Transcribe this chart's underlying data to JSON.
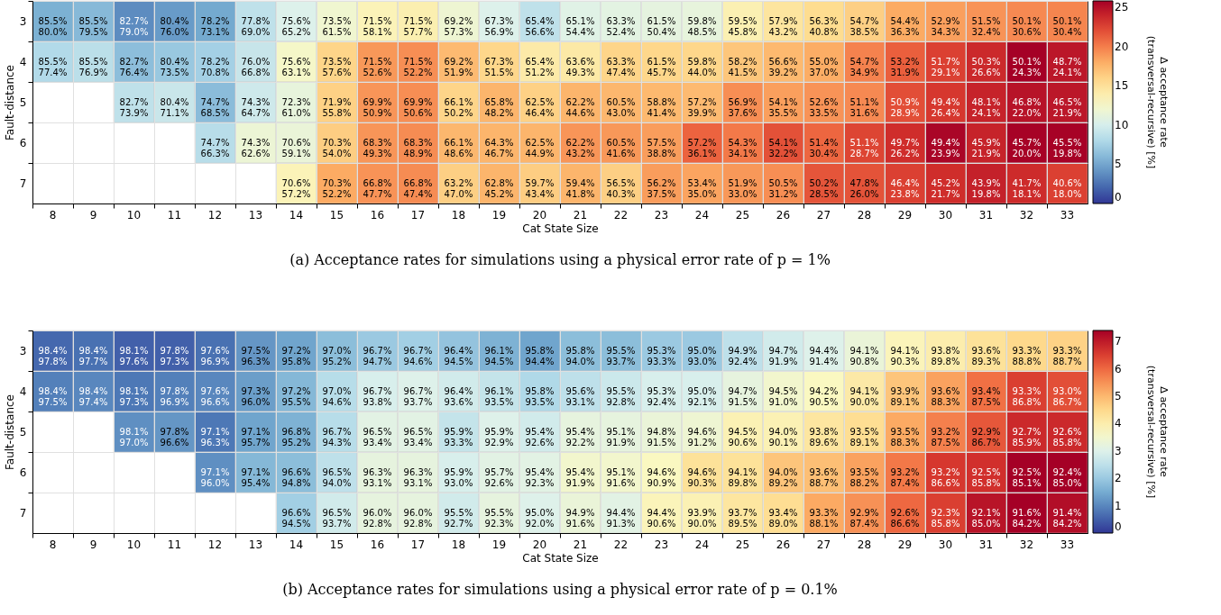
{
  "chart_data": [
    {
      "type": "heatmap",
      "title": "(a) Acceptance rates for simulations using a physical error rate of p = 1%",
      "xlabel": "Cat State Size",
      "ylabel": "Fault-distance",
      "clabel": "Δ acceptance rate\n(transversal-recursive) [%]",
      "grid": true,
      "categories": [
        "8",
        "9",
        "10",
        "11",
        "12",
        "13",
        "14",
        "15",
        "16",
        "17",
        "18",
        "19",
        "20",
        "21",
        "22",
        "23",
        "24",
        "25",
        "26",
        "27",
        "28",
        "29",
        "30",
        "31",
        "32",
        "33"
      ],
      "y_categories": [
        "3",
        "4",
        "5",
        "6",
        "7"
      ],
      "clim": [
        0,
        25.8
      ],
      "cticks": [
        0,
        5,
        10,
        15,
        20,
        25
      ],
      "cells": [
        [
          5.5,
          6.0,
          3.7,
          4.4,
          5.1,
          8.8,
          10.4,
          12.0,
          13.4,
          13.8,
          11.9,
          10.4,
          8.8,
          10.7,
          10.9,
          11.1,
          11.3,
          13.7,
          14.7,
          15.5,
          16.2,
          18.1,
          18.6,
          19.1,
          19.5,
          19.7
        ],
        [
          8.1,
          8.6,
          6.3,
          6.9,
          7.4,
          9.2,
          12.5,
          15.9,
          18.9,
          19.3,
          17.3,
          15.8,
          14.2,
          14.3,
          15.9,
          15.8,
          15.8,
          16.7,
          17.4,
          18.0,
          19.8,
          21.3,
          22.6,
          23.7,
          25.8,
          24.6
        ],
        [
          null,
          null,
          8.8,
          9.3,
          6.2,
          9.6,
          11.3,
          16.1,
          19.0,
          19.3,
          15.9,
          17.6,
          16.1,
          17.6,
          17.5,
          17.4,
          17.3,
          19.3,
          18.6,
          19.1,
          19.5,
          22.0,
          23.0,
          24.0,
          24.8,
          24.6
        ],
        [
          null,
          null,
          null,
          null,
          8.4,
          11.7,
          11.5,
          16.3,
          19.0,
          19.4,
          17.5,
          17.6,
          17.6,
          19.0,
          18.9,
          18.7,
          21.1,
          20.2,
          21.9,
          21.0,
          22.4,
          23.5,
          25.5,
          24.0,
          25.7,
          25.7
        ],
        [
          null,
          null,
          null,
          null,
          null,
          null,
          13.4,
          18.1,
          19.1,
          19.4,
          16.2,
          17.6,
          16.3,
          17.6,
          16.2,
          18.7,
          18.4,
          18.9,
          19.3,
          21.7,
          21.8,
          22.6,
          23.5,
          24.1,
          23.6,
          22.6
        ]
      ],
      "cell_labels": [
        [
          "85.5%\n80.0%",
          "85.5%\n79.5%",
          "82.7%\n79.0%",
          "80.4%\n76.0%",
          "78.2%\n73.1%",
          "77.8%\n69.0%",
          "75.6%\n65.2%",
          "73.5%\n61.5%",
          "71.5%\n58.1%",
          "71.5%\n57.7%",
          "69.2%\n57.3%",
          "67.3%\n56.9%",
          "65.4%\n56.6%",
          "65.1%\n54.4%",
          "63.3%\n52.4%",
          "61.5%\n50.4%",
          "59.8%\n48.5%",
          "59.5%\n45.8%",
          "57.9%\n43.2%",
          "56.3%\n40.8%",
          "54.7%\n38.5%",
          "54.4%\n36.3%",
          "52.9%\n34.3%",
          "51.5%\n32.4%",
          "50.1%\n30.6%",
          "50.1%\n30.4%"
        ],
        [
          "85.5%\n77.4%",
          "85.5%\n76.9%",
          "82.7%\n76.4%",
          "80.4%\n73.5%",
          "78.2%\n70.8%",
          "76.0%\n66.8%",
          "75.6%\n63.1%",
          "73.5%\n57.6%",
          "71.5%\n52.6%",
          "71.5%\n52.2%",
          "69.2%\n51.9%",
          "67.3%\n51.5%",
          "65.4%\n51.2%",
          "63.6%\n49.3%",
          "63.3%\n47.4%",
          "61.5%\n45.7%",
          "59.8%\n44.0%",
          "58.2%\n41.5%",
          "56.6%\n39.2%",
          "55.0%\n37.0%",
          "54.7%\n34.9%",
          "53.2%\n31.9%",
          "51.7%\n29.1%",
          "50.3%\n26.6%",
          "50.1%\n24.3%",
          "48.7%\n24.1%"
        ],
        [
          null,
          null,
          "82.7%\n73.9%",
          "80.4%\n71.1%",
          "74.7%\n68.5%",
          "74.3%\n64.7%",
          "72.3%\n61.0%",
          "71.9%\n55.8%",
          "69.9%\n50.9%",
          "69.9%\n50.6%",
          "66.1%\n50.2%",
          "65.8%\n48.2%",
          "62.5%\n46.4%",
          "62.2%\n44.6%",
          "60.5%\n43.0%",
          "58.8%\n41.4%",
          "57.2%\n39.9%",
          "56.9%\n37.6%",
          "54.1%\n35.5%",
          "52.6%\n33.5%",
          "51.1%\n31.6%",
          "50.9%\n28.9%",
          "49.4%\n26.4%",
          "48.1%\n24.1%",
          "46.8%\n22.0%",
          "46.5%\n21.9%"
        ],
        [
          null,
          null,
          null,
          null,
          "74.7%\n66.3%",
          "74.3%\n62.6%",
          "70.6%\n59.1%",
          "70.3%\n54.0%",
          "68.3%\n49.3%",
          "68.3%\n48.9%",
          "66.1%\n48.6%",
          "64.3%\n46.7%",
          "62.5%\n44.9%",
          "62.2%\n43.2%",
          "60.5%\n41.6%",
          "57.5%\n38.8%",
          "57.2%\n36.1%",
          "54.3%\n34.1%",
          "54.1%\n32.2%",
          "51.4%\n30.4%",
          "51.1%\n28.7%",
          "49.7%\n26.2%",
          "49.4%\n23.9%",
          "45.9%\n21.9%",
          "45.7%\n20.0%",
          "45.5%\n19.8%"
        ],
        [
          null,
          null,
          null,
          null,
          null,
          null,
          "70.6%\n57.2%",
          "70.3%\n52.2%",
          "66.8%\n47.7%",
          "66.8%\n47.4%",
          "63.2%\n47.0%",
          "62.8%\n45.2%",
          "59.7%\n43.4%",
          "59.4%\n41.8%",
          "56.5%\n40.3%",
          "56.2%\n37.5%",
          "53.4%\n35.0%",
          "51.9%\n33.0%",
          "50.5%\n31.2%",
          "50.2%\n28.5%",
          "47.8%\n26.0%",
          "46.4%\n23.8%",
          "45.2%\n21.7%",
          "43.9%\n19.8%",
          "41.7%\n18.1%",
          "40.6%\n18.0%"
        ]
      ]
    },
    {
      "type": "heatmap",
      "title": "(b) Acceptance rates for simulations using a physical error rate of p = 0.1%",
      "xlabel": "Cat State Size",
      "ylabel": "Fault-distance",
      "clabel": "Δ acceptance rate\n(transversal-recursive) [%]",
      "grid": true,
      "categories": [
        "8",
        "9",
        "10",
        "11",
        "12",
        "13",
        "14",
        "15",
        "16",
        "17",
        "18",
        "19",
        "20",
        "21",
        "22",
        "23",
        "24",
        "25",
        "26",
        "27",
        "28",
        "29",
        "30",
        "31",
        "32",
        "33"
      ],
      "y_categories": [
        "3",
        "4",
        "5",
        "6",
        "7"
      ],
      "clim": [
        0,
        7.4
      ],
      "cticks": [
        0,
        1,
        2,
        3,
        4,
        5,
        6,
        7
      ],
      "cells": [
        [
          0.6,
          0.7,
          0.5,
          0.5,
          0.7,
          1.2,
          1.4,
          1.8,
          2.0,
          2.1,
          1.9,
          1.6,
          1.4,
          1.8,
          1.8,
          2.0,
          2.0,
          2.5,
          2.8,
          3.0,
          3.3,
          3.8,
          4.0,
          4.3,
          4.5,
          4.6
        ],
        [
          0.9,
          1.0,
          0.8,
          0.9,
          1.0,
          1.3,
          1.7,
          2.4,
          2.9,
          3.0,
          2.8,
          2.6,
          2.3,
          2.5,
          2.7,
          2.9,
          2.9,
          3.2,
          3.5,
          3.7,
          4.1,
          4.8,
          5.3,
          5.9,
          6.5,
          6.3
        ],
        [
          null,
          null,
          1.1,
          1.2,
          0.8,
          1.4,
          1.6,
          2.4,
          3.1,
          3.1,
          2.6,
          3.0,
          2.8,
          3.2,
          3.2,
          3.3,
          3.4,
          3.9,
          3.9,
          4.2,
          4.4,
          5.2,
          5.7,
          6.2,
          6.8,
          6.8
        ],
        [
          null,
          null,
          null,
          null,
          1.1,
          1.7,
          1.8,
          2.5,
          3.2,
          3.2,
          2.9,
          3.1,
          3.1,
          3.5,
          3.5,
          3.7,
          4.3,
          4.3,
          4.8,
          4.9,
          5.3,
          5.8,
          6.6,
          6.7,
          7.4,
          7.4
        ],
        [
          null,
          null,
          null,
          null,
          null,
          null,
          2.1,
          2.8,
          3.2,
          3.2,
          2.8,
          3.2,
          3.0,
          3.3,
          3.1,
          3.8,
          3.9,
          4.2,
          4.4,
          5.2,
          5.5,
          6.0,
          6.5,
          7.1,
          7.4,
          7.2
        ]
      ],
      "cell_labels": [
        [
          "98.4%\n97.8%",
          "98.4%\n97.7%",
          "98.1%\n97.6%",
          "97.8%\n97.3%",
          "97.6%\n96.9%",
          "97.5%\n96.3%",
          "97.2%\n95.8%",
          "97.0%\n95.2%",
          "96.7%\n94.7%",
          "96.7%\n94.6%",
          "96.4%\n94.5%",
          "96.1%\n94.5%",
          "95.8%\n94.4%",
          "95.8%\n94.0%",
          "95.5%\n93.7%",
          "95.3%\n93.3%",
          "95.0%\n93.0%",
          "94.9%\n92.4%",
          "94.7%\n91.9%",
          "94.4%\n91.4%",
          "94.1%\n90.8%",
          "94.1%\n90.3%",
          "93.8%\n89.8%",
          "93.6%\n89.3%",
          "93.3%\n88.8%",
          "93.3%\n88.7%"
        ],
        [
          "98.4%\n97.5%",
          "98.4%\n97.4%",
          "98.1%\n97.3%",
          "97.8%\n96.9%",
          "97.6%\n96.6%",
          "97.3%\n96.0%",
          "97.2%\n95.5%",
          "97.0%\n94.6%",
          "96.7%\n93.8%",
          "96.7%\n93.7%",
          "96.4%\n93.6%",
          "96.1%\n93.5%",
          "95.8%\n93.5%",
          "95.6%\n93.1%",
          "95.5%\n92.8%",
          "95.3%\n92.4%",
          "95.0%\n92.1%",
          "94.7%\n91.5%",
          "94.5%\n91.0%",
          "94.2%\n90.5%",
          "94.1%\n90.0%",
          "93.9%\n89.1%",
          "93.6%\n88.3%",
          "93.4%\n87.5%",
          "93.3%\n86.8%",
          "93.0%\n86.7%"
        ],
        [
          null,
          null,
          "98.1%\n97.0%",
          "97.8%\n96.6%",
          "97.1%\n96.3%",
          "97.1%\n95.7%",
          "96.8%\n95.2%",
          "96.7%\n94.3%",
          "96.5%\n93.4%",
          "96.5%\n93.4%",
          "95.9%\n93.3%",
          "95.9%\n92.9%",
          "95.4%\n92.6%",
          "95.4%\n92.2%",
          "95.1%\n91.9%",
          "94.8%\n91.5%",
          "94.6%\n91.2%",
          "94.5%\n90.6%",
          "94.0%\n90.1%",
          "93.8%\n89.6%",
          "93.5%\n89.1%",
          "93.5%\n88.3%",
          "93.2%\n87.5%",
          "92.9%\n86.7%",
          "92.7%\n85.9%",
          "92.6%\n85.8%"
        ],
        [
          null,
          null,
          null,
          null,
          "97.1%\n96.0%",
          "97.1%\n95.4%",
          "96.6%\n94.8%",
          "96.5%\n94.0%",
          "96.3%\n93.1%",
          "96.3%\n93.1%",
          "95.9%\n93.0%",
          "95.7%\n92.6%",
          "95.4%\n92.3%",
          "95.4%\n91.9%",
          "95.1%\n91.6%",
          "94.6%\n90.9%",
          "94.6%\n90.3%",
          "94.1%\n89.8%",
          "94.0%\n89.2%",
          "93.6%\n88.7%",
          "93.5%\n88.2%",
          "93.2%\n87.4%",
          "93.2%\n86.6%",
          "92.5%\n85.8%",
          "92.5%\n85.1%",
          "92.4%\n85.0%"
        ],
        [
          null,
          null,
          null,
          null,
          null,
          null,
          "96.6%\n94.5%",
          "96.5%\n93.7%",
          "96.0%\n92.8%",
          "96.0%\n92.8%",
          "95.5%\n92.7%",
          "95.5%\n92.3%",
          "95.0%\n92.0%",
          "94.9%\n91.6%",
          "94.4%\n91.3%",
          "94.4%\n90.6%",
          "93.9%\n90.0%",
          "93.7%\n89.5%",
          "93.4%\n89.0%",
          "93.3%\n88.1%",
          "92.9%\n87.4%",
          "92.6%\n86.6%",
          "92.3%\n85.8%",
          "92.1%\n85.0%",
          "91.6%\n84.2%",
          "91.4%\n84.2%"
        ]
      ]
    }
  ]
}
